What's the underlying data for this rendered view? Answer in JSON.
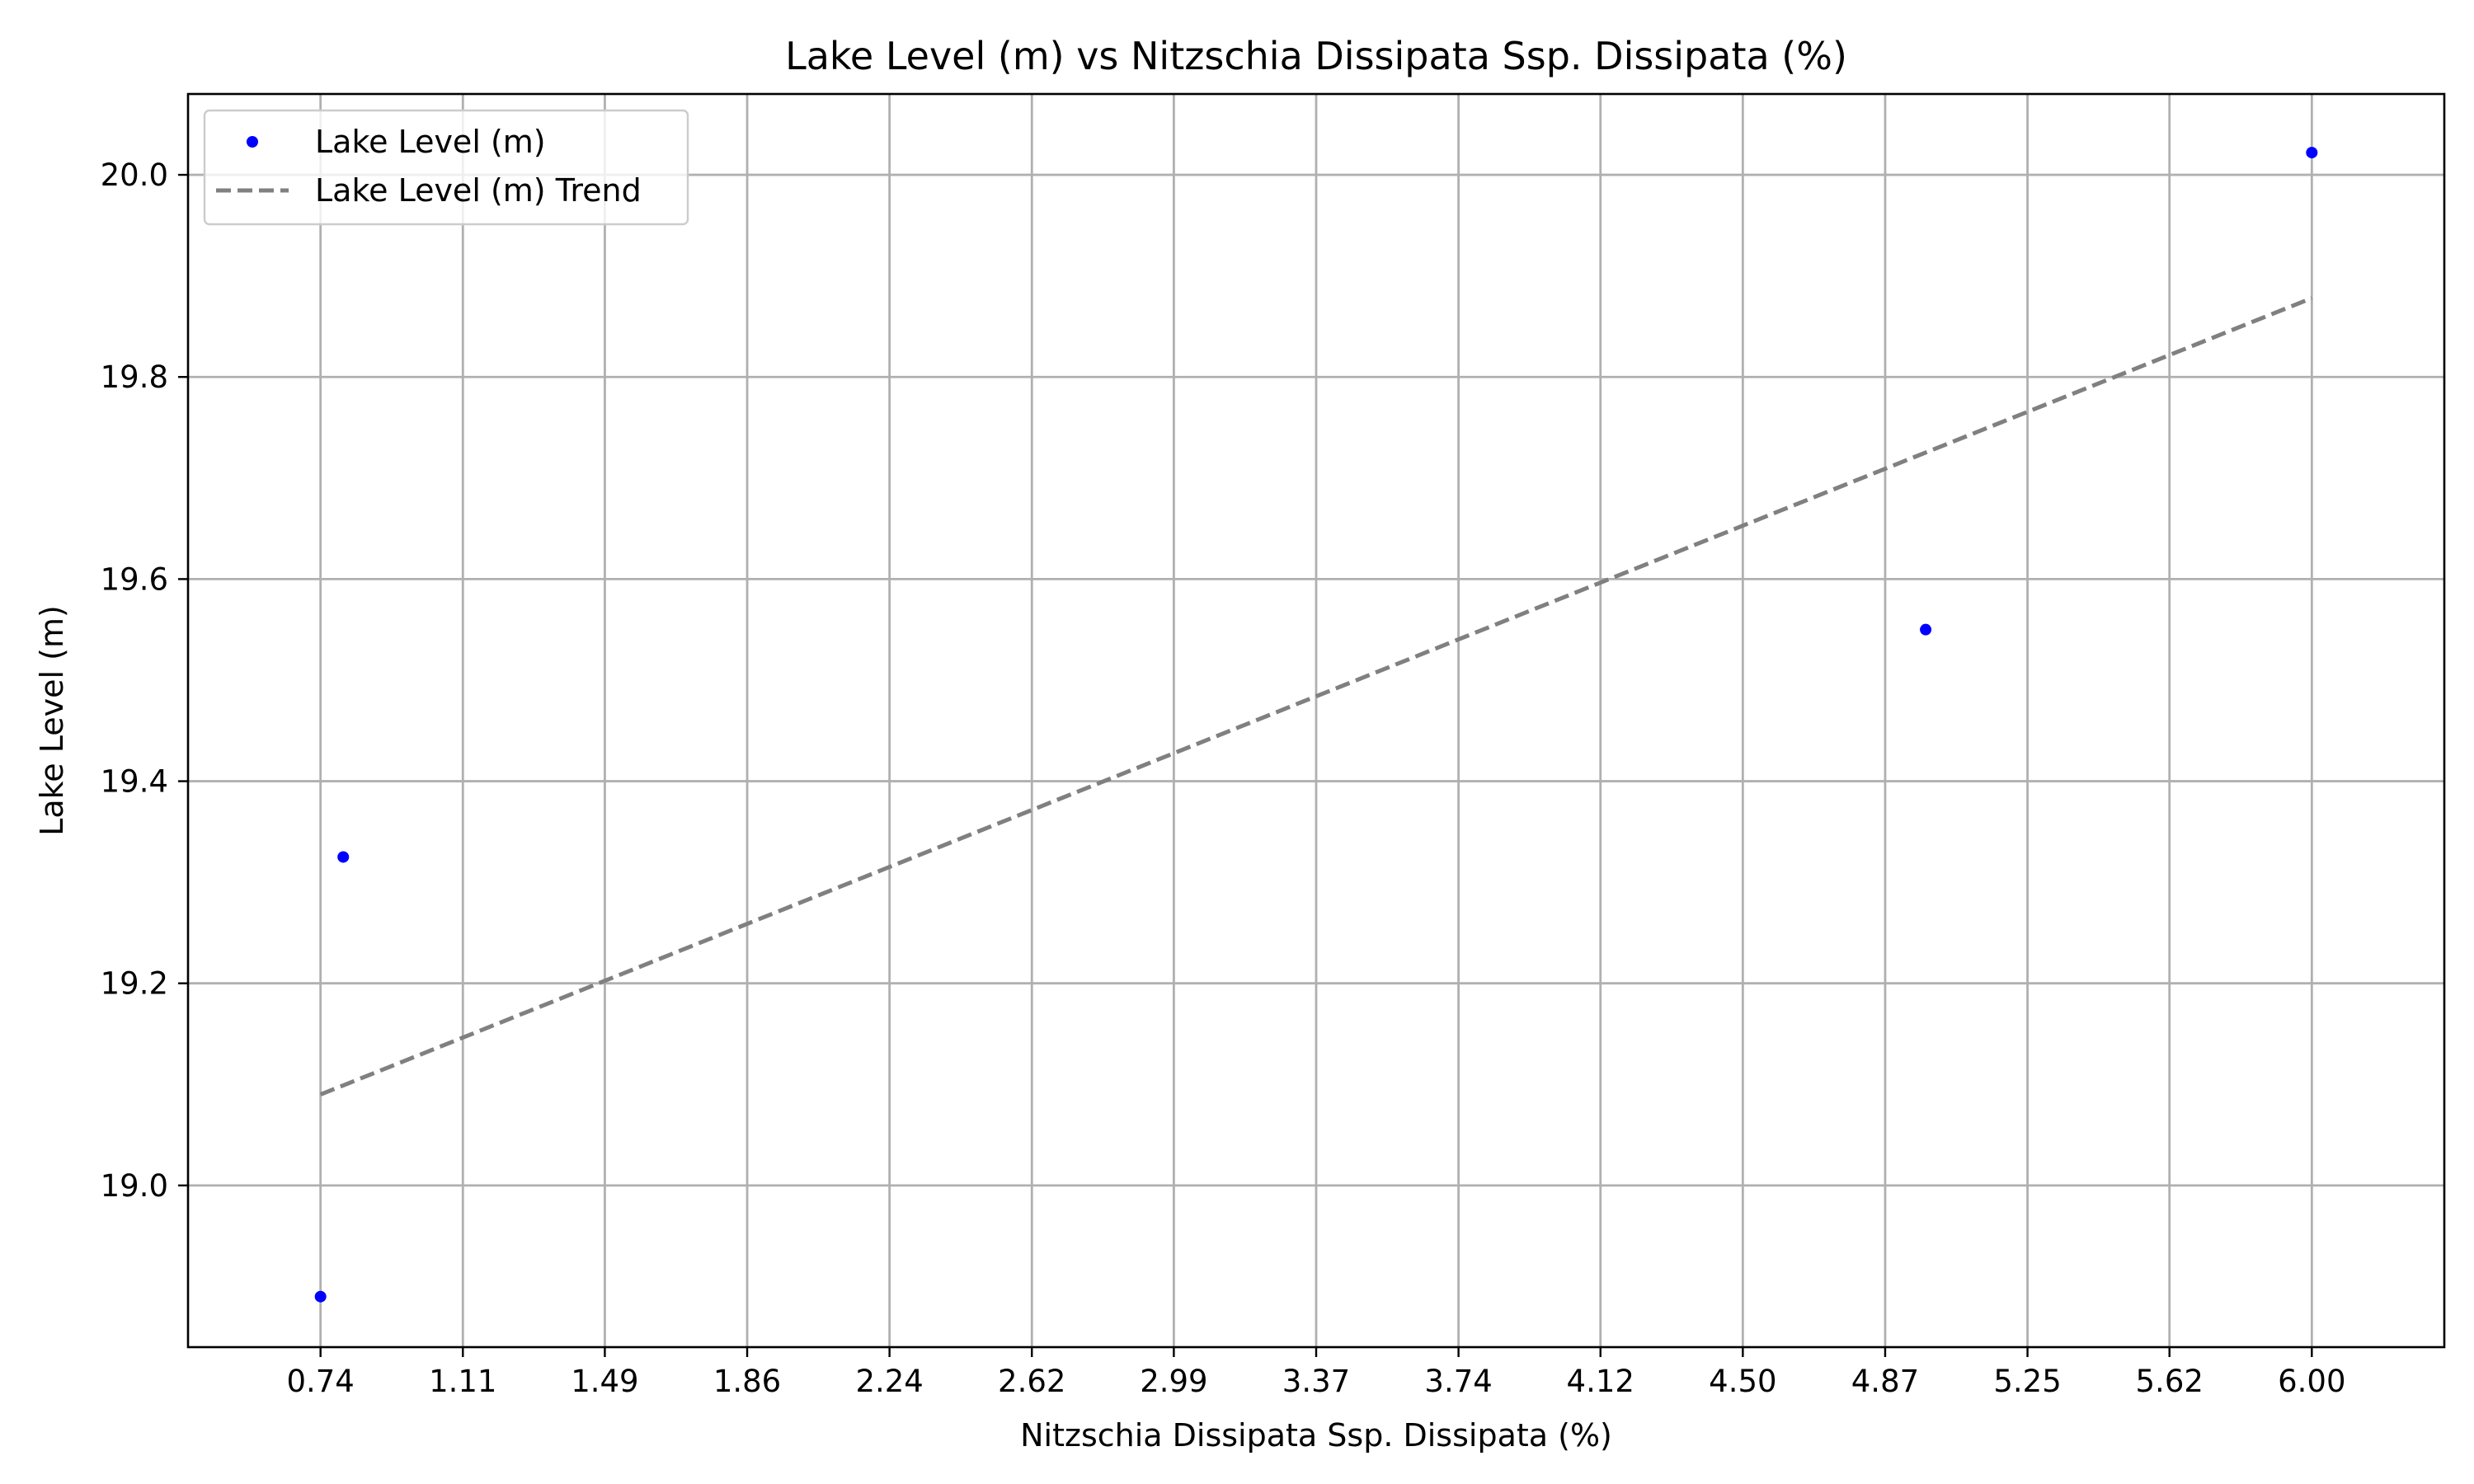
{
  "chart_data": {
    "type": "scatter",
    "title": "Lake Level (m) vs Nitzschia Dissipata Ssp. Dissipata (%)",
    "xlabel": "Nitzschia Dissipata Ssp. Dissipata (%)",
    "ylabel": "Lake Level (m)",
    "xlim": [
      0.39,
      6.35
    ],
    "ylim": [
      18.84,
      20.08
    ],
    "grid": true,
    "legend_position": "top-left",
    "x_ticks": [
      "0.74",
      "1.11",
      "1.49",
      "1.86",
      "2.24",
      "2.62",
      "2.99",
      "3.37",
      "3.74",
      "4.12",
      "4.50",
      "4.87",
      "5.25",
      "5.62",
      "6.00"
    ],
    "x_tick_values": [
      0.74,
      1.116,
      1.491,
      1.867,
      2.243,
      2.619,
      2.994,
      3.37,
      3.746,
      4.121,
      4.497,
      4.873,
      5.249,
      5.624,
      6.0
    ],
    "y_ticks": [
      "19.0",
      "19.2",
      "19.4",
      "19.6",
      "19.8",
      "20.0"
    ],
    "y_tick_values": [
      19.0,
      19.2,
      19.4,
      19.6,
      19.8,
      20.0
    ],
    "series": [
      {
        "name": "Lake Level (m)",
        "kind": "scatter",
        "color": "#0000ff",
        "x": [
          0.74,
          0.8,
          4.98,
          6.0
        ],
        "y": [
          18.89,
          19.325,
          19.55,
          20.022
        ]
      },
      {
        "name": "Lake Level (m) Trend",
        "kind": "line",
        "style": "dashed",
        "color": "#808080",
        "x": [
          0.74,
          6.0
        ],
        "y": [
          19.09,
          19.878
        ]
      }
    ]
  }
}
